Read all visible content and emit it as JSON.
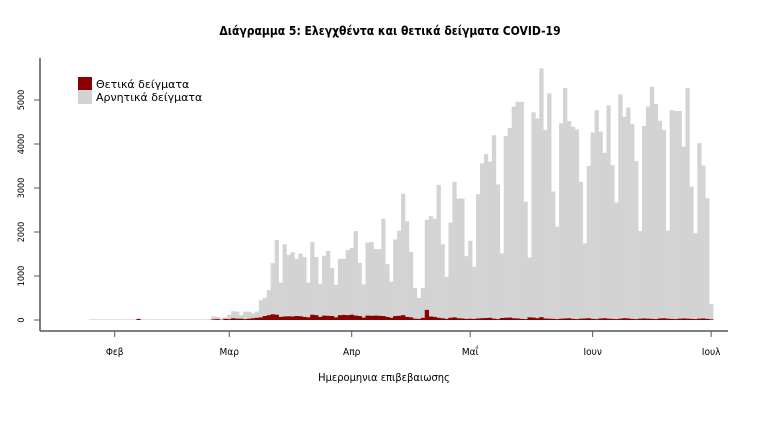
{
  "chart_data": {
    "type": "bar",
    "stacked": false,
    "title": "Διάγραμμα 5: Ελεγχθέντα και θετικά δείγματα COVID-19",
    "xlabel": "Ημερομηνια επιβεβαιωσης",
    "ylabel": "",
    "x_start_date": "2020-01-26",
    "x_unit": "day",
    "x_ticks": [
      "Φεβ",
      "Μαρ",
      "Απρ",
      "Μαΐ",
      "Ιουν",
      "Ιουλ"
    ],
    "x_tick_days": [
      6,
      35,
      66,
      96,
      127,
      157
    ],
    "y_ticks": [
      "0",
      "1000",
      "2000",
      "3000",
      "4000",
      "5000"
    ],
    "y_tick_values": [
      0,
      1000,
      2000,
      3000,
      4000,
      5000
    ],
    "ylim": [
      0,
      5900
    ],
    "grid": false,
    "legend_position": "top-left",
    "series": [
      {
        "name": "Αρνητικά δείγματα",
        "color": "#d3d3d3",
        "values": [
          15,
          15,
          15,
          15,
          15,
          15,
          15,
          15,
          15,
          15,
          15,
          15,
          15,
          15,
          15,
          15,
          15,
          15,
          15,
          15,
          15,
          15,
          15,
          15,
          15,
          15,
          15,
          15,
          15,
          15,
          20,
          80,
          70,
          40,
          60,
          120,
          200,
          190,
          110,
          190,
          190,
          150,
          190,
          450,
          500,
          680,
          1290,
          1820,
          850,
          1720,
          1480,
          1540,
          1390,
          1510,
          1430,
          850,
          1770,
          1430,
          820,
          1460,
          1570,
          1180,
          800,
          1390,
          1390,
          1590,
          1640,
          2020,
          1300,
          810,
          1760,
          1770,
          1610,
          1610,
          2300,
          1270,
          870,
          1830,
          2030,
          2870,
          2240,
          1550,
          730,
          500,
          730,
          2280,
          2360,
          2300,
          3070,
          1720,
          980,
          2210,
          3140,
          2760,
          2760,
          1450,
          1800,
          1210,
          2860,
          3560,
          3770,
          3600,
          4200,
          3080,
          1515,
          4180,
          4360,
          4850,
          4960,
          4960,
          2690,
          1420,
          4720,
          4580,
          5720,
          4320,
          5150,
          2920,
          2120,
          4470,
          5270,
          4520,
          4390,
          4330,
          3140,
          1740,
          3500,
          4260,
          4770,
          4280,
          3800,
          4880,
          3520,
          2670,
          5130,
          4620,
          4830,
          4450,
          3610,
          2020,
          4410,
          4850,
          5300,
          4910,
          4530,
          4320,
          2030,
          4770,
          4750,
          4750,
          3940,
          5270,
          3030,
          1970,
          4020,
          3510,
          2770,
          360
        ]
      },
      {
        "name": "Θετικά δείγματα",
        "color": "#8b0000",
        "values": [
          0,
          0,
          0,
          0,
          0,
          0,
          0,
          0,
          0,
          0,
          0,
          0,
          25,
          0,
          0,
          0,
          0,
          0,
          0,
          0,
          0,
          0,
          0,
          0,
          0,
          0,
          0,
          0,
          0,
          0,
          0,
          15,
          20,
          5,
          25,
          20,
          40,
          30,
          30,
          20,
          30,
          40,
          50,
          60,
          90,
          110,
          130,
          120,
          70,
          80,
          85,
          80,
          90,
          85,
          70,
          60,
          120,
          110,
          70,
          100,
          95,
          90,
          60,
          110,
          115,
          110,
          120,
          100,
          90,
          55,
          100,
          95,
          100,
          95,
          90,
          70,
          50,
          90,
          95,
          110,
          70,
          60,
          30,
          25,
          50,
          230,
          80,
          70,
          50,
          40,
          25,
          50,
          60,
          40,
          35,
          25,
          30,
          25,
          35,
          40,
          45,
          50,
          30,
          20,
          45,
          50,
          55,
          40,
          35,
          25,
          20,
          60,
          55,
          40,
          65,
          35,
          30,
          25,
          20,
          30,
          35,
          40,
          25,
          20,
          30,
          35,
          40,
          25,
          20,
          35,
          40,
          30,
          25,
          20,
          30,
          40,
          35,
          25,
          20,
          30,
          35,
          30,
          25,
          20,
          35,
          40,
          30,
          25,
          20,
          30,
          35,
          30,
          25,
          20,
          30,
          35,
          25,
          15
        ]
      }
    ]
  }
}
